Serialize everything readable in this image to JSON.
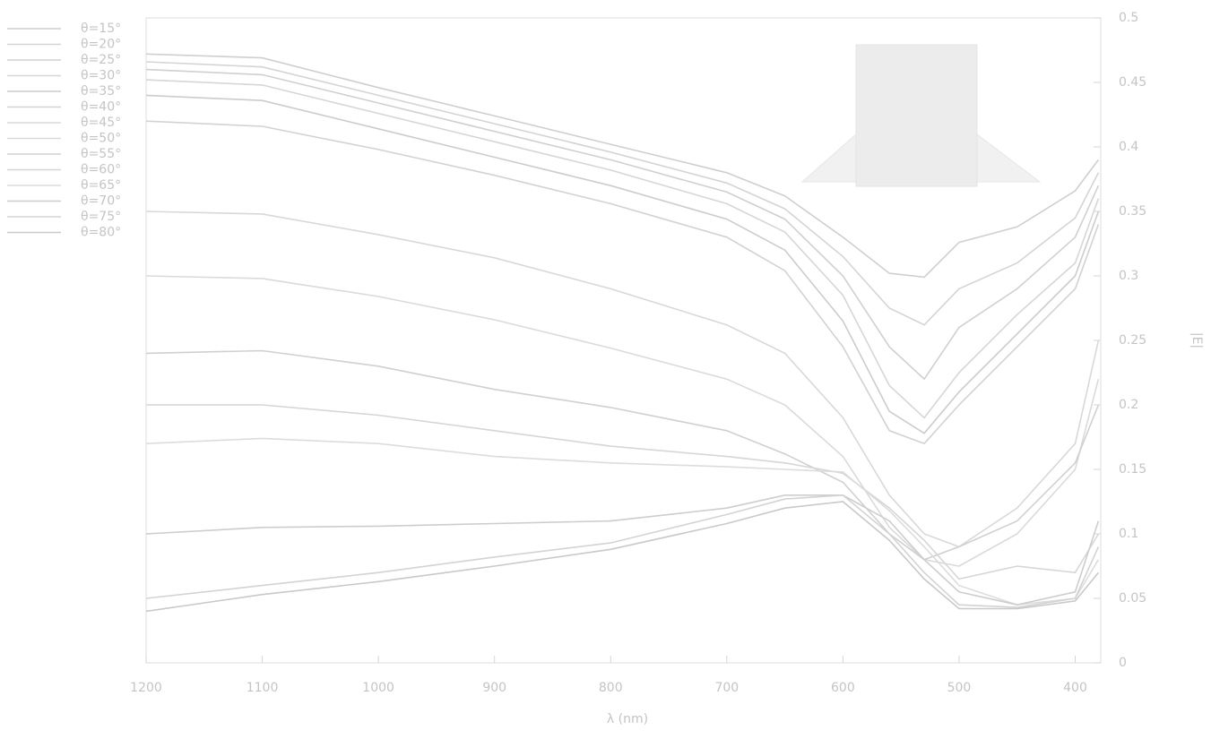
{
  "chart_data": {
    "type": "line",
    "xlabel": "λ (nm)",
    "ylabel": "|E|",
    "x": [
      1200,
      1100,
      1000,
      900,
      800,
      700,
      650,
      600,
      560,
      530,
      500,
      450,
      400,
      380
    ],
    "xlim": [
      1200,
      378
    ],
    "ylim": [
      0,
      0.5
    ],
    "xticks": [
      1200,
      1100,
      1000,
      900,
      800,
      700,
      600,
      500,
      400
    ],
    "yticks": [
      0,
      0.05,
      0.1,
      0.15,
      0.2,
      0.25,
      0.3,
      0.35,
      0.4,
      0.45,
      0.5
    ],
    "y_axis_side": "right",
    "legend": "left",
    "series": [
      {
        "name": "θ=15°",
        "color": "#cfcfcf",
        "values": [
          0.472,
          0.469,
          0.446,
          0.424,
          0.402,
          0.38,
          0.362,
          0.33,
          0.302,
          0.299,
          0.326,
          0.338,
          0.366,
          0.39
        ]
      },
      {
        "name": "θ=20°",
        "color": "#d4d4d4",
        "values": [
          0.466,
          0.462,
          0.44,
          0.418,
          0.396,
          0.372,
          0.352,
          0.315,
          0.275,
          0.262,
          0.29,
          0.31,
          0.345,
          0.38
        ]
      },
      {
        "name": "θ=25°",
        "color": "#d0d0d0",
        "values": [
          0.46,
          0.456,
          0.434,
          0.412,
          0.39,
          0.365,
          0.344,
          0.3,
          0.245,
          0.22,
          0.26,
          0.29,
          0.33,
          0.37
        ]
      },
      {
        "name": "θ=30°",
        "color": "#d6d6d6",
        "values": [
          0.452,
          0.448,
          0.426,
          0.404,
          0.382,
          0.356,
          0.334,
          0.285,
          0.215,
          0.19,
          0.225,
          0.27,
          0.31,
          0.36
        ]
      },
      {
        "name": "θ=35°",
        "color": "#cccccc",
        "values": [
          0.44,
          0.436,
          0.414,
          0.392,
          0.37,
          0.344,
          0.32,
          0.265,
          0.195,
          0.178,
          0.21,
          0.255,
          0.3,
          0.35
        ]
      },
      {
        "name": "θ=40°",
        "color": "#d2d2d2",
        "values": [
          0.42,
          0.416,
          0.398,
          0.378,
          0.356,
          0.33,
          0.304,
          0.245,
          0.18,
          0.17,
          0.2,
          0.245,
          0.29,
          0.34
        ]
      },
      {
        "name": "θ=45°",
        "color": "#d8d8d8",
        "values": [
          0.35,
          0.348,
          0.332,
          0.314,
          0.29,
          0.262,
          0.24,
          0.19,
          0.13,
          0.1,
          0.09,
          0.12,
          0.17,
          0.25
        ]
      },
      {
        "name": "θ=50°",
        "color": "#dadada",
        "values": [
          0.3,
          0.298,
          0.284,
          0.266,
          0.244,
          0.22,
          0.2,
          0.16,
          0.105,
          0.08,
          0.075,
          0.1,
          0.15,
          0.22
        ]
      },
      {
        "name": "θ=55°",
        "color": "#d0d0d0",
        "values": [
          0.24,
          0.242,
          0.23,
          0.212,
          0.198,
          0.18,
          0.162,
          0.14,
          0.1,
          0.08,
          0.09,
          0.11,
          0.155,
          0.2
        ]
      },
      {
        "name": "θ=60°",
        "color": "#d6d6d6",
        "values": [
          0.2,
          0.2,
          0.192,
          0.18,
          0.168,
          0.16,
          0.155,
          0.147,
          0.12,
          0.095,
          0.065,
          0.075,
          0.07,
          0.1
        ]
      },
      {
        "name": "θ=65°",
        "color": "#dcdcdc",
        "values": [
          0.17,
          0.174,
          0.17,
          0.16,
          0.155,
          0.152,
          0.15,
          0.148,
          0.118,
          0.09,
          0.06,
          0.045,
          0.05,
          0.08
        ]
      },
      {
        "name": "θ=70°",
        "color": "#cdcdcd",
        "values": [
          0.1,
          0.105,
          0.106,
          0.108,
          0.11,
          0.12,
          0.13,
          0.13,
          0.11,
          0.08,
          0.055,
          0.045,
          0.055,
          0.11
        ]
      },
      {
        "name": "θ=75°",
        "color": "#d3d3d3",
        "values": [
          0.05,
          0.06,
          0.07,
          0.082,
          0.093,
          0.115,
          0.127,
          0.13,
          0.1,
          0.07,
          0.045,
          0.043,
          0.05,
          0.09
        ]
      },
      {
        "name": "θ=80°",
        "color": "#c9c9c9",
        "values": [
          0.04,
          0.053,
          0.063,
          0.075,
          0.088,
          0.108,
          0.12,
          0.125,
          0.095,
          0.065,
          0.042,
          0.042,
          0.048,
          0.07
        ]
      }
    ]
  }
}
